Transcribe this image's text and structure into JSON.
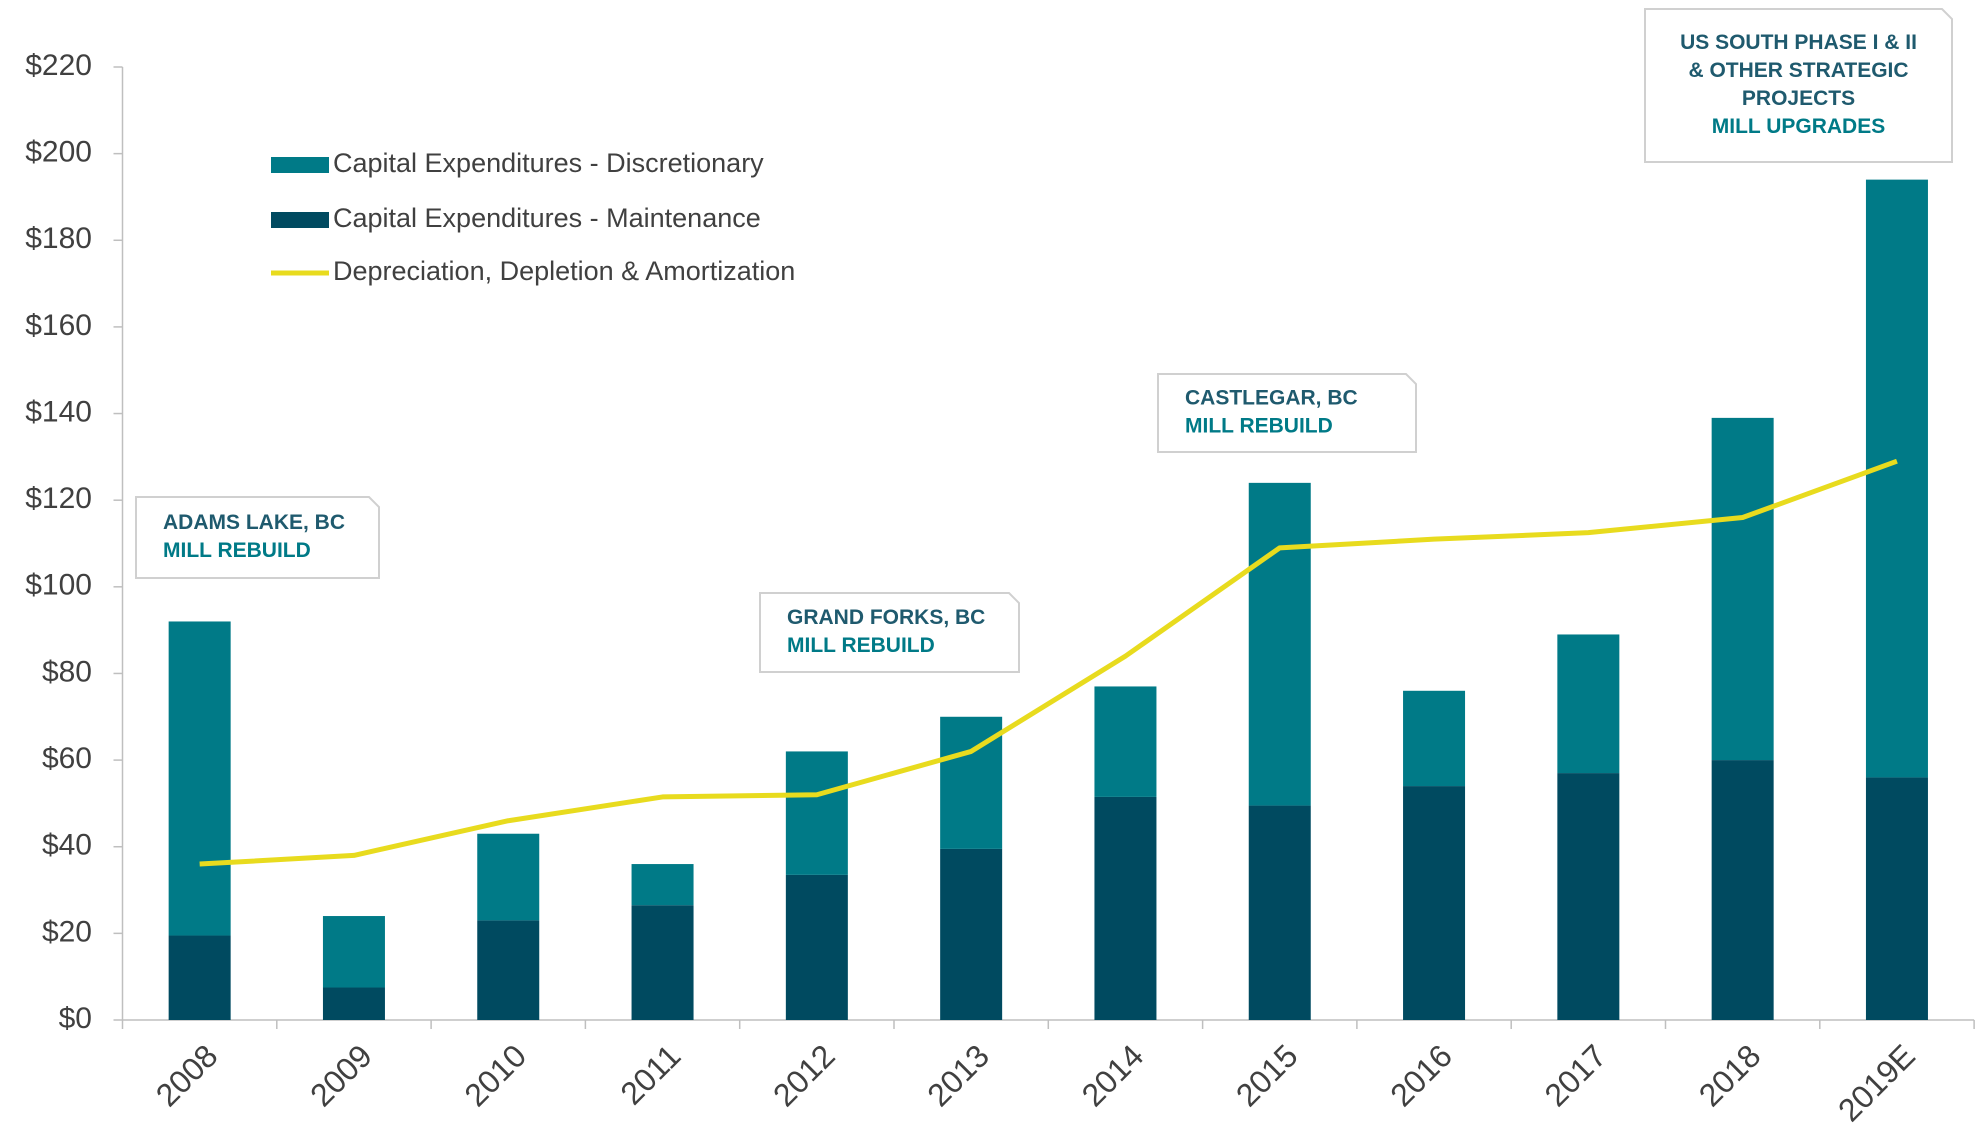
{
  "chart_data": {
    "type": "bar",
    "stacked": true,
    "categories": [
      "2008",
      "2009",
      "2010",
      "2011",
      "2012",
      "2013",
      "2014",
      "2015",
      "2016",
      "2017",
      "2018",
      "2019E"
    ],
    "series": [
      {
        "name": "Capital Expenditures - Maintenance",
        "color": "#004a60",
        "values": [
          19.5,
          7.5,
          23,
          26.5,
          33.5,
          39.5,
          51.5,
          49.5,
          54,
          57,
          60,
          56
        ]
      },
      {
        "name": "Capital Expenditures - Discretionary",
        "color": "#007a87",
        "values": [
          72.5,
          16.5,
          20,
          9.5,
          28.5,
          30.5,
          25.5,
          74.5,
          22,
          32,
          79,
          138
        ]
      },
      {
        "name": "Depreciation, Depletion & Amortization",
        "type": "line",
        "color": "#e8db1e",
        "values": [
          36,
          38,
          46,
          51.5,
          52,
          62,
          84,
          109,
          111,
          112.5,
          116,
          129
        ]
      }
    ],
    "ylim": [
      0,
      220
    ],
    "yticks": [
      {
        "value": 0,
        "label": "$0"
      },
      {
        "value": 20,
        "label": "$20"
      },
      {
        "value": 40,
        "label": "$40"
      },
      {
        "value": 60,
        "label": "$60"
      },
      {
        "value": 80,
        "label": "$80"
      },
      {
        "value": 100,
        "label": "$100"
      },
      {
        "value": 120,
        "label": "$120"
      },
      {
        "value": 140,
        "label": "$140"
      },
      {
        "value": 160,
        "label": "$160"
      },
      {
        "value": 180,
        "label": "$180"
      },
      {
        "value": 200,
        "label": "$200"
      },
      {
        "value": 220,
        "label": "$220"
      }
    ],
    "annotations": [
      {
        "lines": [
          "ADAMS LAKE, BC",
          "MILL REBUILD"
        ]
      },
      {
        "lines": [
          "GRAND FORKS, BC",
          "MILL REBUILD"
        ]
      },
      {
        "lines": [
          "CASTLEGAR, BC",
          "MILL REBUILD"
        ]
      },
      {
        "lines": [
          "US SOUTH PHASE I & II",
          "& OTHER STRATEGIC",
          "PROJECTS",
          "MILL UPGRADES"
        ]
      }
    ]
  }
}
